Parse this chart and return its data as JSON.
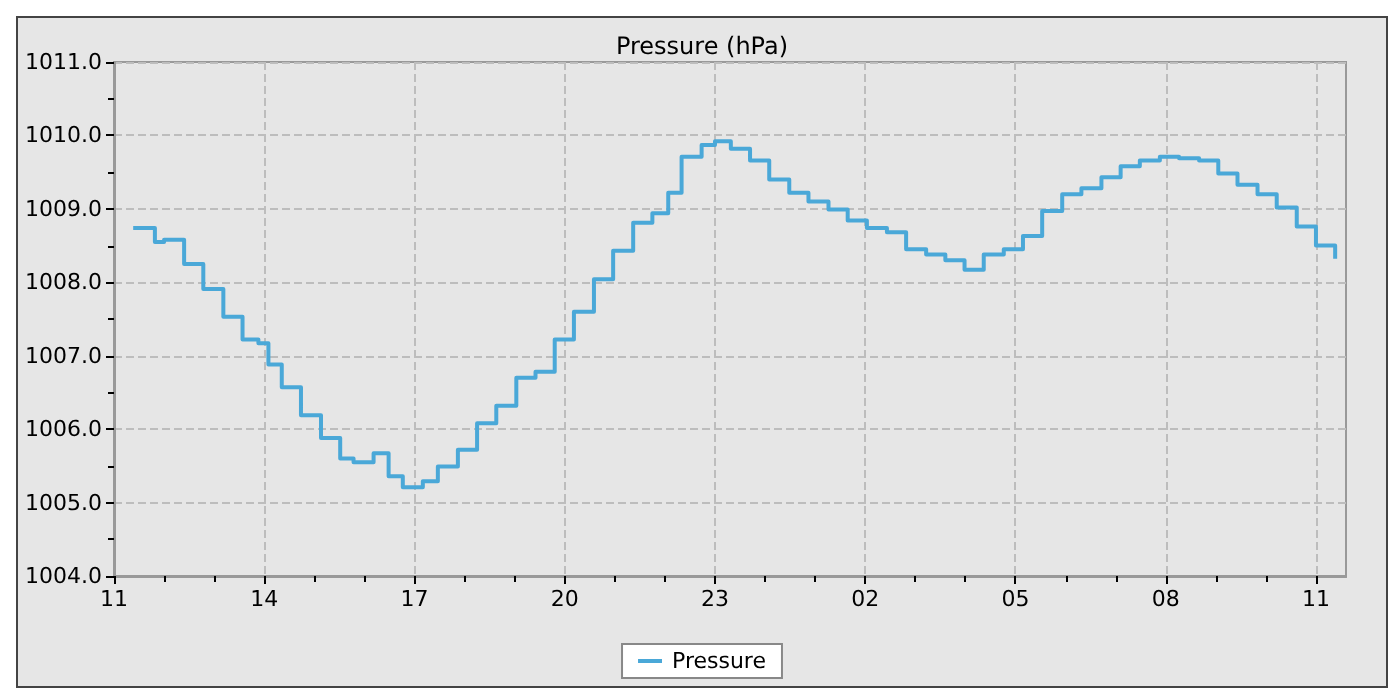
{
  "chart_data": {
    "type": "step",
    "title": "Pressure (hPa)",
    "x": [
      "--01-01T11:23",
      "--01-01T11:49",
      "--01-01T12:00",
      "--01-01T12:24",
      "--01-01T12:47",
      "--01-01T13:11",
      "--01-01T13:34",
      "--01-01T13:53",
      "--01-01T14:05",
      "--01-01T14:21",
      "--01-01T14:44",
      "--01-01T15:08",
      "--01-01T15:31",
      "--01-01T15:47",
      "--01-01T16:11",
      "--01-01T16:29",
      "--01-01T16:46",
      "--01-01T17:10",
      "--01-01T17:28",
      "--01-01T17:52",
      "--01-01T18:15",
      "--01-01T18:38",
      "--01-01T19:02",
      "--01-01T19:25",
      "--01-01T19:48",
      "--01-01T20:11",
      "--01-01T20:35",
      "--01-01T20:58",
      "--01-01T21:22",
      "--01-01T21:45",
      "--01-01T22:04",
      "--01-01T22:20",
      "--01-01T22:44",
      "--01-01T23:00",
      "--01-01T23:19",
      "--01-01T23:42",
      "--01-02T00:05",
      "--01-02T00:29",
      "--01-02T00:52",
      "--01-02T01:16",
      "--01-02T01:39",
      "--01-02T02:02",
      "--01-02T02:26",
      "--01-02T02:49",
      "--01-02T03:13",
      "--01-02T03:36",
      "--01-02T03:59",
      "--01-02T04:22",
      "--01-02T04:46",
      "--01-02T05:09",
      "--01-02T05:32",
      "--01-02T05:56",
      "--01-02T06:19",
      "--01-02T06:43",
      "--01-02T07:06",
      "--01-02T07:29",
      "--01-02T07:53",
      "--01-02T08:16",
      "--01-02T08:40",
      "--01-02T09:03",
      "--01-02T09:26",
      "--01-02T09:50",
      "--01-02T10:13",
      "--01-02T10:37",
      "--01-02T11:00",
      "--01-02T11:23"
    ],
    "series": [
      {
        "name": "Pressure",
        "color": "#4aa8d8",
        "values": [
          1008.74,
          1008.55,
          1008.58,
          1008.25,
          1007.91,
          1007.53,
          1007.22,
          1007.17,
          1006.88,
          1006.57,
          1006.19,
          1005.88,
          1005.6,
          1005.55,
          1005.67,
          1005.36,
          1005.21,
          1005.29,
          1005.49,
          1005.72,
          1006.08,
          1006.32,
          1006.7,
          1006.78,
          1007.22,
          1007.6,
          1008.04,
          1008.43,
          1008.81,
          1008.94,
          1009.22,
          1009.71,
          1009.87,
          1009.92,
          1009.82,
          1009.66,
          1009.4,
          1009.22,
          1009.1,
          1008.99,
          1008.84,
          1008.74,
          1008.68,
          1008.45,
          1008.38,
          1008.3,
          1008.17,
          1008.38,
          1008.45,
          1008.63,
          1008.97,
          1009.2,
          1009.28,
          1009.43,
          1009.58,
          1009.66,
          1009.71,
          1009.69,
          1009.66,
          1009.48,
          1009.33,
          1009.2,
          1009.02,
          1008.76,
          1008.5,
          1008.32
        ]
      }
    ],
    "xlim": [
      "--01-01T11:00",
      "--01-02T11:36"
    ],
    "xticks": [
      {
        "value": "--01-01T11:00",
        "label": "11"
      },
      {
        "value": "--01-01T12:00",
        "label": null
      },
      {
        "value": "--01-01T13:00",
        "label": null
      },
      {
        "value": "--01-01T14:00",
        "label": "14"
      },
      {
        "value": "--01-01T15:00",
        "label": null
      },
      {
        "value": "--01-01T16:00",
        "label": null
      },
      {
        "value": "--01-01T17:00",
        "label": "17"
      },
      {
        "value": "--01-01T18:00",
        "label": null
      },
      {
        "value": "--01-01T19:00",
        "label": null
      },
      {
        "value": "--01-01T20:00",
        "label": "20"
      },
      {
        "value": "--01-01T21:00",
        "label": null
      },
      {
        "value": "--01-01T22:00",
        "label": null
      },
      {
        "value": "--01-01T23:00",
        "label": "23"
      },
      {
        "value": "--01-02T00:00",
        "label": null
      },
      {
        "value": "--01-02T01:00",
        "label": null
      },
      {
        "value": "--01-02T02:00",
        "label": "02"
      },
      {
        "value": "--01-02T03:00",
        "label": null
      },
      {
        "value": "--01-02T04:00",
        "label": null
      },
      {
        "value": "--01-02T05:00",
        "label": "05"
      },
      {
        "value": "--01-02T06:00",
        "label": null
      },
      {
        "value": "--01-02T07:00",
        "label": null
      },
      {
        "value": "--01-02T08:00",
        "label": "08"
      },
      {
        "value": "--01-02T09:00",
        "label": null
      },
      {
        "value": "--01-02T10:00",
        "label": null
      },
      {
        "value": "--01-02T11:00",
        "label": "11"
      }
    ],
    "ylim": [
      1004,
      1011
    ],
    "yticks": [
      {
        "value": 1004,
        "label": "1004.0"
      },
      {
        "value": 1004.5,
        "label": null
      },
      {
        "value": 1005,
        "label": "1005.0"
      },
      {
        "value": 1005.5,
        "label": null
      },
      {
        "value": 1006,
        "label": "1006.0"
      },
      {
        "value": 1006.5,
        "label": null
      },
      {
        "value": 1007,
        "label": "1007.0"
      },
      {
        "value": 1007.5,
        "label": null
      },
      {
        "value": 1008,
        "label": "1008.0"
      },
      {
        "value": 1008.5,
        "label": null
      },
      {
        "value": 1009,
        "label": "1009.0"
      },
      {
        "value": 1009.5,
        "label": null
      },
      {
        "value": 1010,
        "label": "1010.0"
      },
      {
        "value": 1010.5,
        "label": null
      },
      {
        "value": 1011,
        "label": "1011.0"
      }
    ],
    "grid": true,
    "legend": "bottom",
    "marker": "none"
  }
}
